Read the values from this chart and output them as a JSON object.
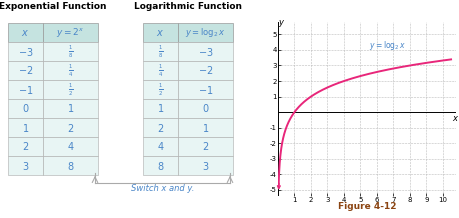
{
  "exp_title": "Exponential Function",
  "log_title": "Logarithmic Function",
  "exp_col1": [
    "-3",
    "-2",
    "-1",
    "0",
    "1",
    "2",
    "3"
  ],
  "exp_col2": [
    "1/8",
    "1/4",
    "1/2",
    "1",
    "2",
    "4",
    "8"
  ],
  "log_col1": [
    "1/8",
    "1/4",
    "1/2",
    "1",
    "2",
    "4",
    "8"
  ],
  "log_col2": [
    "-3",
    "-2",
    "-1",
    "0",
    "1",
    "2",
    "3"
  ],
  "switch_text": "Switch x and y.",
  "figure_label": "Figure 4-12",
  "curve_color": "#e8267a",
  "label_color": "#4a86c8",
  "header_bg": "#c5e3e0",
  "row_bg": "#e8f5f4",
  "grid_color": "#aaaaaa",
  "xlim": [
    0,
    10.8
  ],
  "ylim": [
    -5.4,
    5.8
  ],
  "xticks": [
    1,
    2,
    3,
    4,
    5,
    6,
    7,
    8,
    9,
    10
  ],
  "yticks": [
    -5,
    -4,
    -3,
    -2,
    -1,
    1,
    2,
    3,
    4,
    5
  ]
}
